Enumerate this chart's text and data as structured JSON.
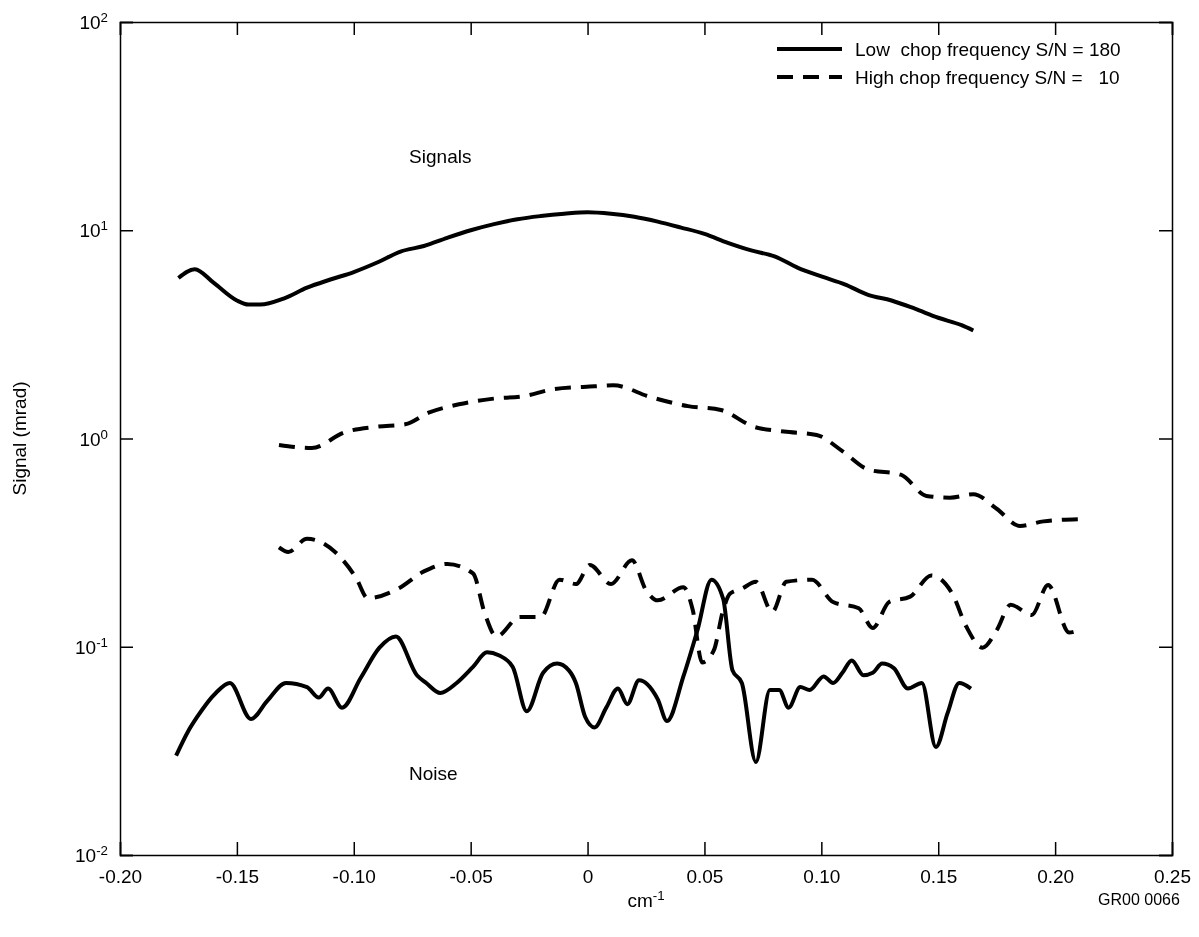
{
  "chart_data": {
    "type": "line",
    "xlabel": "cm$^{-1}$",
    "ylabel": "Signal (mrad)",
    "log": "y",
    "grid": false,
    "legend": "top right",
    "xlim": [
      -0.2,
      0.25
    ],
    "xticks": [
      {
        "value": -0.2,
        "label": "-0.20"
      },
      {
        "value": -0.15,
        "label": "-0.15"
      },
      {
        "value": -0.1,
        "label": "-0.10"
      },
      {
        "value": -0.05,
        "label": "-0.05"
      },
      0,
      {
        "value": 0.05,
        "label": "0.05"
      },
      {
        "value": 0.1,
        "label": "0.10"
      },
      {
        "value": 0.15,
        "label": "0.15"
      },
      {
        "value": 0.2,
        "label": "0.20"
      },
      {
        "value": 0.25,
        "label": "0.25"
      }
    ],
    "ylim": [
      0.01,
      100
    ],
    "yticks": [
      {
        "value": 0.01,
        "label": "10$^{-2}$"
      },
      {
        "value": 0.1,
        "label": "10$^{-1}$"
      },
      {
        "value": 1,
        "label": "10$^{0}$"
      },
      {
        "value": 10,
        "label": "10$^{1}$"
      },
      {
        "value": 100,
        "label": "10$^{2}$"
      }
    ],
    "annotations": [
      "Signals",
      "Noise",
      "GR00 0066"
    ],
    "series": [
      {
        "name": "Low  chop frequency S/N = 180",
        "color": "#000000",
        "line_style": "solid",
        "x": [
          -0.175,
          -0.168,
          -0.16,
          -0.15,
          -0.145,
          -0.14,
          -0.13,
          -0.12,
          -0.11,
          -0.1,
          -0.09,
          -0.08,
          -0.07,
          -0.06,
          -0.05,
          -0.04,
          -0.03,
          -0.02,
          -0.01,
          0,
          0.01,
          0.02,
          0.03,
          0.04,
          0.05,
          0.06,
          0.07,
          0.08,
          0.09,
          0.1,
          0.11,
          0.12,
          0.13,
          0.14,
          0.15,
          0.16,
          0.165
        ],
        "values": [
          5.9,
          6.5,
          5.6,
          4.6,
          4.4,
          4.4,
          4.7,
          5.3,
          5.8,
          6.3,
          7.0,
          7.9,
          8.4,
          9.2,
          10,
          10.7,
          11.3,
          11.7,
          12.0,
          12.2,
          12.0,
          11.6,
          11.0,
          10.3,
          9.6,
          8.7,
          8.0,
          7.5,
          6.6,
          6.0,
          5.5,
          4.9,
          4.6,
          4.2,
          3.8,
          3.5,
          3.3
        ]
      },
      {
        "name": "High chop frequency S/N =   10",
        "color": "#000000",
        "line_style": "dashed",
        "x": [
          -0.132,
          -0.118,
          -0.104,
          -0.09,
          -0.078,
          -0.068,
          -0.055,
          -0.041,
          -0.027,
          -0.014,
          0.003,
          0.011,
          0.027,
          0.043,
          0.057,
          0.071,
          0.084,
          0.098,
          0.109,
          0.12,
          0.134,
          0.145,
          0.155,
          0.165,
          0.175,
          0.185,
          0.195,
          0.21
        ],
        "values": [
          0.93,
          0.9,
          1.07,
          1.14,
          1.17,
          1.33,
          1.46,
          1.55,
          1.6,
          1.73,
          1.78,
          1.8,
          1.58,
          1.43,
          1.37,
          1.14,
          1.08,
          1.04,
          0.87,
          0.71,
          0.67,
          0.53,
          0.52,
          0.54,
          0.46,
          0.38,
          0.4,
          0.41
        ]
      },
      {
        "color": "#000000",
        "line_style": "solid",
        "x": [
          -0.176,
          -0.171,
          -0.167,
          -0.159,
          -0.153,
          -0.144,
          -0.137,
          -0.129,
          -0.12,
          -0.115,
          -0.111,
          -0.105,
          -0.097,
          -0.089,
          -0.082,
          -0.073,
          -0.069,
          -0.063,
          -0.056,
          -0.049,
          -0.043,
          -0.038,
          -0.032,
          -0.026,
          -0.019,
          -0.013,
          -0.008,
          -0.005,
          -0.001,
          0.003,
          0.008,
          0.013,
          0.017,
          0.022,
          0.03,
          0.034,
          0.041,
          0.047,
          0.053,
          0.058,
          0.062,
          0.066,
          0.072,
          0.078,
          0.082,
          0.086,
          0.091,
          0.095,
          0.101,
          0.105,
          0.109,
          0.113,
          0.118,
          0.122,
          0.126,
          0.131,
          0.137,
          0.143,
          0.149,
          0.154,
          0.159,
          0.164
        ],
        "values": [
          0.03,
          0.039,
          0.046,
          0.06,
          0.067,
          0.045,
          0.055,
          0.067,
          0.064,
          0.057,
          0.063,
          0.051,
          0.071,
          0.099,
          0.112,
          0.073,
          0.067,
          0.06,
          0.067,
          0.08,
          0.094,
          0.091,
          0.08,
          0.049,
          0.075,
          0.083,
          0.077,
          0.067,
          0.046,
          0.041,
          0.051,
          0.063,
          0.053,
          0.069,
          0.056,
          0.044,
          0.072,
          0.12,
          0.21,
          0.17,
          0.077,
          0.067,
          0.028,
          0.062,
          0.062,
          0.051,
          0.064,
          0.062,
          0.072,
          0.067,
          0.075,
          0.086,
          0.073,
          0.075,
          0.083,
          0.079,
          0.063,
          0.067,
          0.033,
          0.048,
          0.067,
          0.063
        ]
      },
      {
        "color": "#000000",
        "line_style": "dashed",
        "x": [
          -0.132,
          -0.128,
          -0.12,
          -0.108,
          -0.099,
          -0.094,
          -0.081,
          -0.07,
          -0.06,
          -0.049,
          -0.044,
          -0.039,
          -0.029,
          -0.02,
          -0.012,
          -0.005,
          0.001,
          0.01,
          0.019,
          0.025,
          0.03,
          0.041,
          0.045,
          0.049,
          0.054,
          0.058,
          0.061,
          0.066,
          0.072,
          0.079,
          0.085,
          0.096,
          0.105,
          0.116,
          0.122,
          0.129,
          0.138,
          0.147,
          0.156,
          0.162,
          0.169,
          0.175,
          0.181,
          0.19,
          0.197,
          0.206,
          0.21
        ],
        "values": [
          0.3,
          0.285,
          0.33,
          0.285,
          0.214,
          0.171,
          0.19,
          0.23,
          0.25,
          0.225,
          0.145,
          0.112,
          0.139,
          0.139,
          0.21,
          0.2,
          0.247,
          0.2,
          0.26,
          0.187,
          0.167,
          0.193,
          0.15,
          0.084,
          0.096,
          0.15,
          0.18,
          0.19,
          0.205,
          0.147,
          0.205,
          0.21,
          0.164,
          0.153,
          0.123,
          0.164,
          0.174,
          0.22,
          0.18,
          0.125,
          0.099,
          0.12,
          0.159,
          0.142,
          0.198,
          0.117,
          0.12
        ]
      }
    ]
  }
}
